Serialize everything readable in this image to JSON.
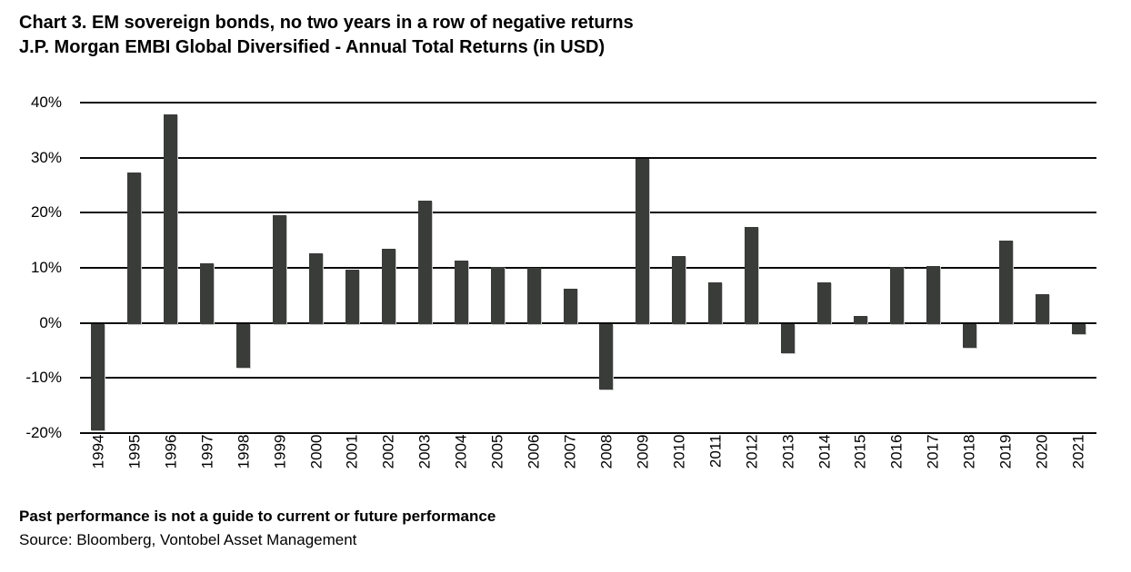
{
  "header": {
    "title": "Chart 3. EM sovereign bonds, no two years in a row of negative returns",
    "subtitle": "J.P. Morgan EMBI Global Diversified - Annual Total Returns (in USD)"
  },
  "chart_data": {
    "type": "bar",
    "title": "Chart 3. EM sovereign bonds, no two years in a row of negative returns",
    "subtitle": "J.P. Morgan EMBI Global Diversified - Annual Total Returns (in USD)",
    "categories": [
      "1994",
      "1995",
      "1996",
      "1997",
      "1998",
      "1999",
      "2000",
      "2001",
      "2002",
      "2003",
      "2004",
      "2005",
      "2006",
      "2007",
      "2008",
      "2009",
      "2010",
      "2011",
      "2012",
      "2013",
      "2014",
      "2015",
      "2016",
      "2017",
      "2018",
      "2019",
      "2020",
      "2021"
    ],
    "values": [
      -19.3,
      27.3,
      37.8,
      10.8,
      -8.0,
      19.6,
      12.7,
      9.7,
      13.5,
      22.2,
      11.4,
      10.1,
      10.0,
      6.2,
      -12.0,
      29.8,
      12.2,
      7.3,
      17.4,
      -5.3,
      7.4,
      1.2,
      10.2,
      10.3,
      -4.3,
      15.0,
      5.3,
      -1.8
    ],
    "xlabel": "",
    "ylabel": "",
    "ylim": [
      -20,
      40
    ],
    "y_ticks": [
      40,
      30,
      20,
      10,
      0,
      -10,
      -20
    ],
    "y_tick_labels": [
      "40%",
      "30%",
      "20%",
      "10%",
      "0%",
      "-10%",
      "-20%"
    ],
    "grid": "horizontal",
    "legend": "none",
    "bar_color": "#3a3c3a",
    "gridline_color": "#0a0a0a"
  },
  "footer": {
    "disclaimer": "Past performance is not a guide to current or future performance",
    "source": "Source: Bloomberg, Vontobel Asset Management"
  }
}
